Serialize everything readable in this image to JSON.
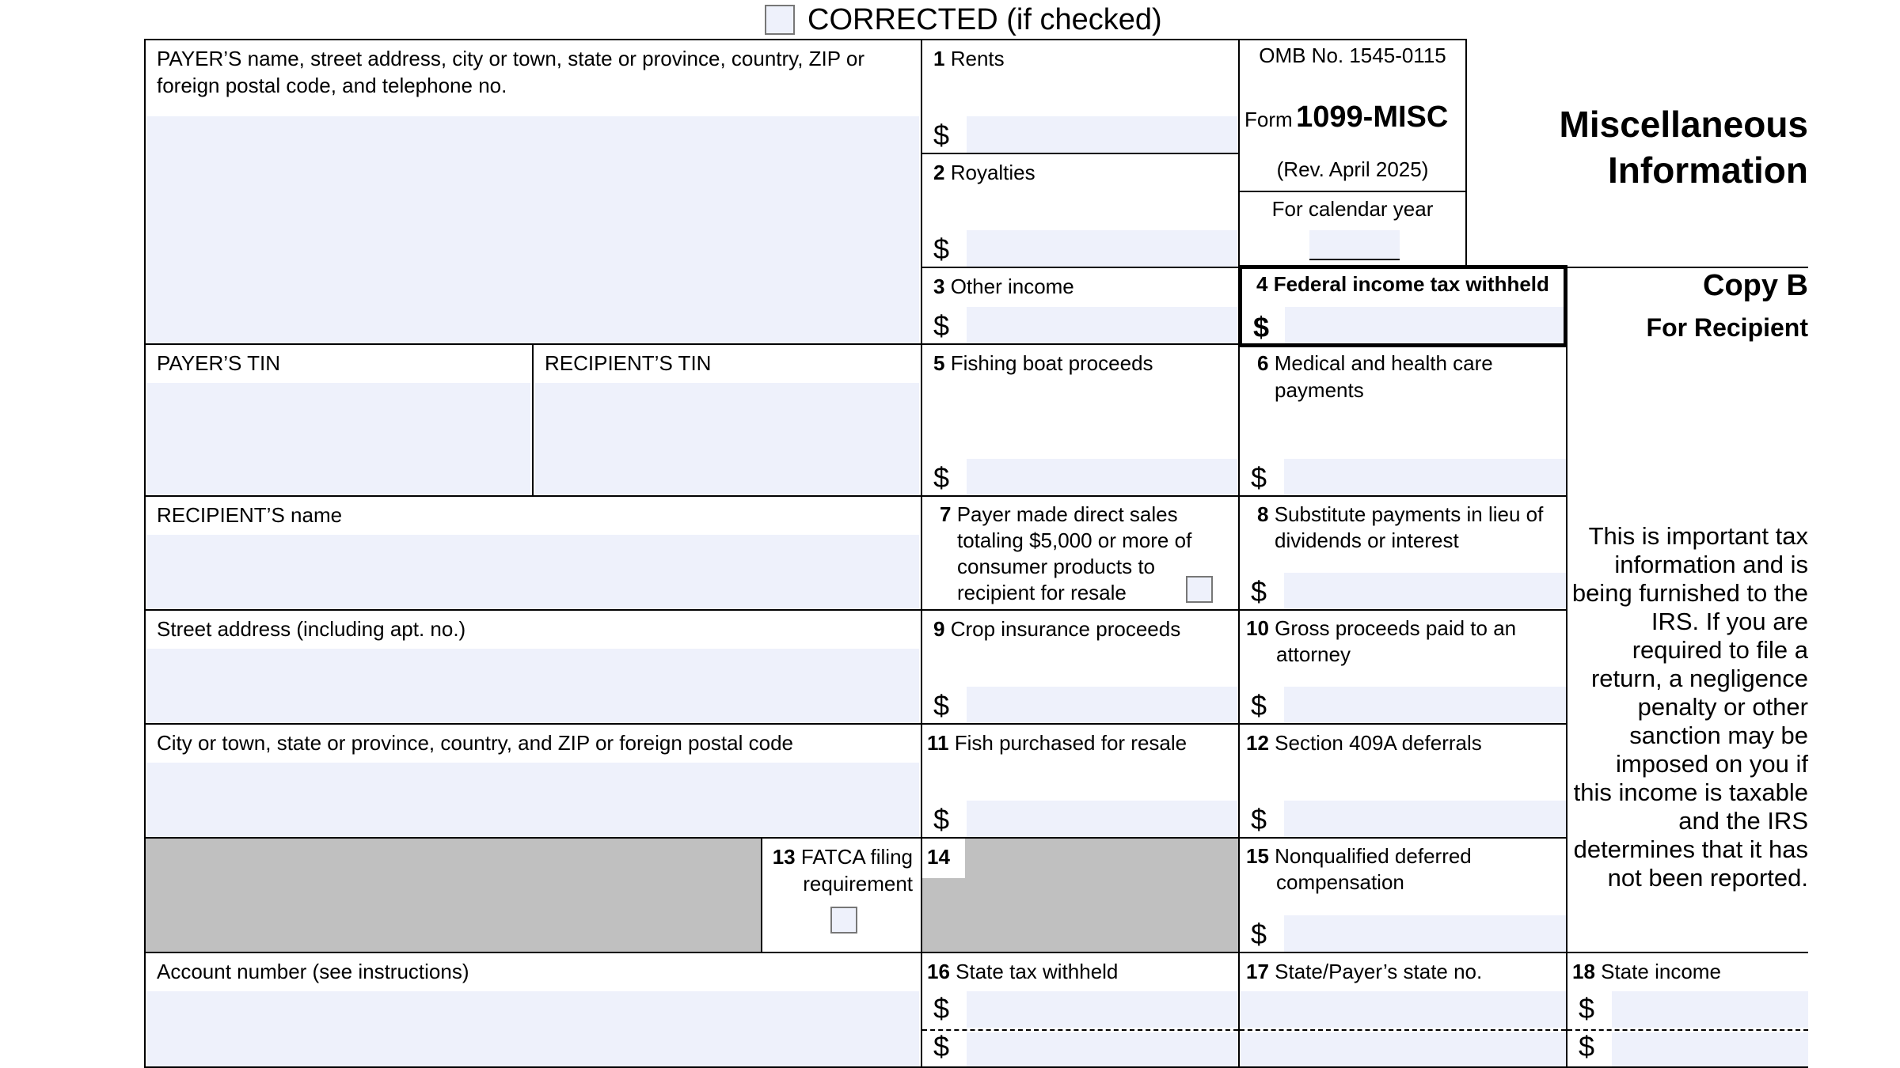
{
  "header": {
    "corrected_label": "CORRECTED (if checked)"
  },
  "payer": {
    "name_label": "PAYER’S name, street address, city or town, state or province, country, ZIP or foreign postal code, and telephone no.",
    "tin_label": "PAYER’S TIN"
  },
  "recipient": {
    "tin_label": "RECIPIENT’S TIN",
    "name_label": "RECIPIENT’S name",
    "street_label": "Street address (including apt. no.)",
    "city_label": "City or town, state or province, country, and ZIP or foreign postal code",
    "account_label": "Account number (see instructions)"
  },
  "form": {
    "omb": "OMB No. 1545-0115",
    "form_word": "Form",
    "form_number": "1099-MISC",
    "revision": "(Rev. April 2025)",
    "calendar_year_label": "For calendar year",
    "title_line1": "Miscellaneous",
    "title_line2": "Information",
    "copy": "Copy B",
    "copy_for": "For Recipient",
    "notice": "This is important tax information and is being furnished to the IRS. If you are required to file a return, a negligence penalty or other sanction may be imposed on you if this income is taxable and the IRS determines that it has not been reported."
  },
  "currency_symbol": "$",
  "boxes": {
    "b1": {
      "num": "1",
      "label": "Rents"
    },
    "b2": {
      "num": "2",
      "label": "Royalties"
    },
    "b3": {
      "num": "3",
      "label": "Other income"
    },
    "b4": {
      "num": "4",
      "label": "Federal income tax withheld"
    },
    "b5": {
      "num": "5",
      "label": "Fishing boat proceeds"
    },
    "b6": {
      "num": "6",
      "label": "Medical and health care payments"
    },
    "b7": {
      "num": "7",
      "label": "Payer made direct sales totaling $5,000 or more of consumer products to recipient for resale"
    },
    "b8": {
      "num": "8",
      "label": "Substitute payments in lieu of dividends or interest"
    },
    "b9": {
      "num": "9",
      "label": "Crop insurance proceeds"
    },
    "b10": {
      "num": "10",
      "label": "Gross proceeds paid to an attorney"
    },
    "b11": {
      "num": "11",
      "label": "Fish purchased for resale"
    },
    "b12": {
      "num": "12",
      "label": "Section 409A deferrals"
    },
    "b13": {
      "num": "13",
      "label": "FATCA filing requirement"
    },
    "b14": {
      "num": "14"
    },
    "b15": {
      "num": "15",
      "label": "Nonqualified deferred compensation"
    },
    "b16": {
      "num": "16",
      "label": "State tax withheld"
    },
    "b17": {
      "num": "17",
      "label": "State/Payer’s state no."
    },
    "b18": {
      "num": "18",
      "label": "State income"
    }
  },
  "colors": {
    "field_fill": "#eef1fb",
    "shaded": "#c0c0c0"
  }
}
